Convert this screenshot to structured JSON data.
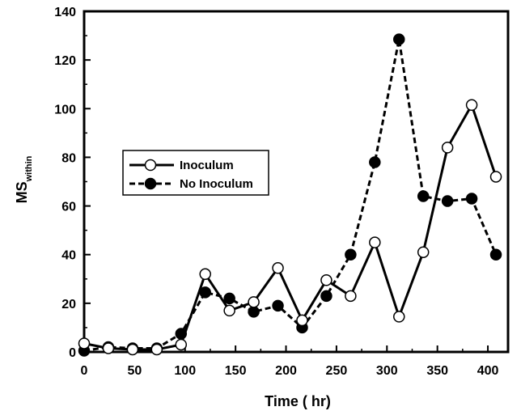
{
  "chart_data": {
    "type": "line",
    "xlabel": "Time ( hr)",
    "ylabel_main": "MS",
    "ylabel_sub": "within",
    "xlim": [
      0,
      420
    ],
    "ylim": [
      0,
      140
    ],
    "xticks": [
      0,
      50,
      100,
      150,
      200,
      250,
      300,
      350,
      400
    ],
    "yticks": [
      0,
      20,
      40,
      60,
      80,
      100,
      120,
      140
    ],
    "grid": false,
    "legend_position": "center-left",
    "series": [
      {
        "name": "Inoculum",
        "marker": "open-circle",
        "line": "solid",
        "color": "#000000",
        "x": [
          0,
          24,
          48,
          72,
          96,
          120,
          144,
          168,
          192,
          216,
          240,
          264,
          288,
          312,
          336,
          360,
          384,
          408
        ],
        "values": [
          3.5,
          1.5,
          1.0,
          1.0,
          3.0,
          32,
          17,
          20.5,
          34.5,
          13,
          29.5,
          23,
          45,
          14.5,
          41,
          84,
          101.5,
          72
        ]
      },
      {
        "name": "No Inoculum",
        "marker": "filled-circle",
        "line": "dashed",
        "color": "#000000",
        "x": [
          0,
          24,
          48,
          72,
          96,
          120,
          144,
          168,
          192,
          216,
          240,
          264,
          288,
          312,
          336,
          360,
          384,
          408
        ],
        "values": [
          0.5,
          2.0,
          1.5,
          1.5,
          7.5,
          24.5,
          22,
          16.5,
          19,
          10,
          23,
          40,
          78,
          128.5,
          64,
          62,
          63,
          40
        ]
      }
    ]
  }
}
